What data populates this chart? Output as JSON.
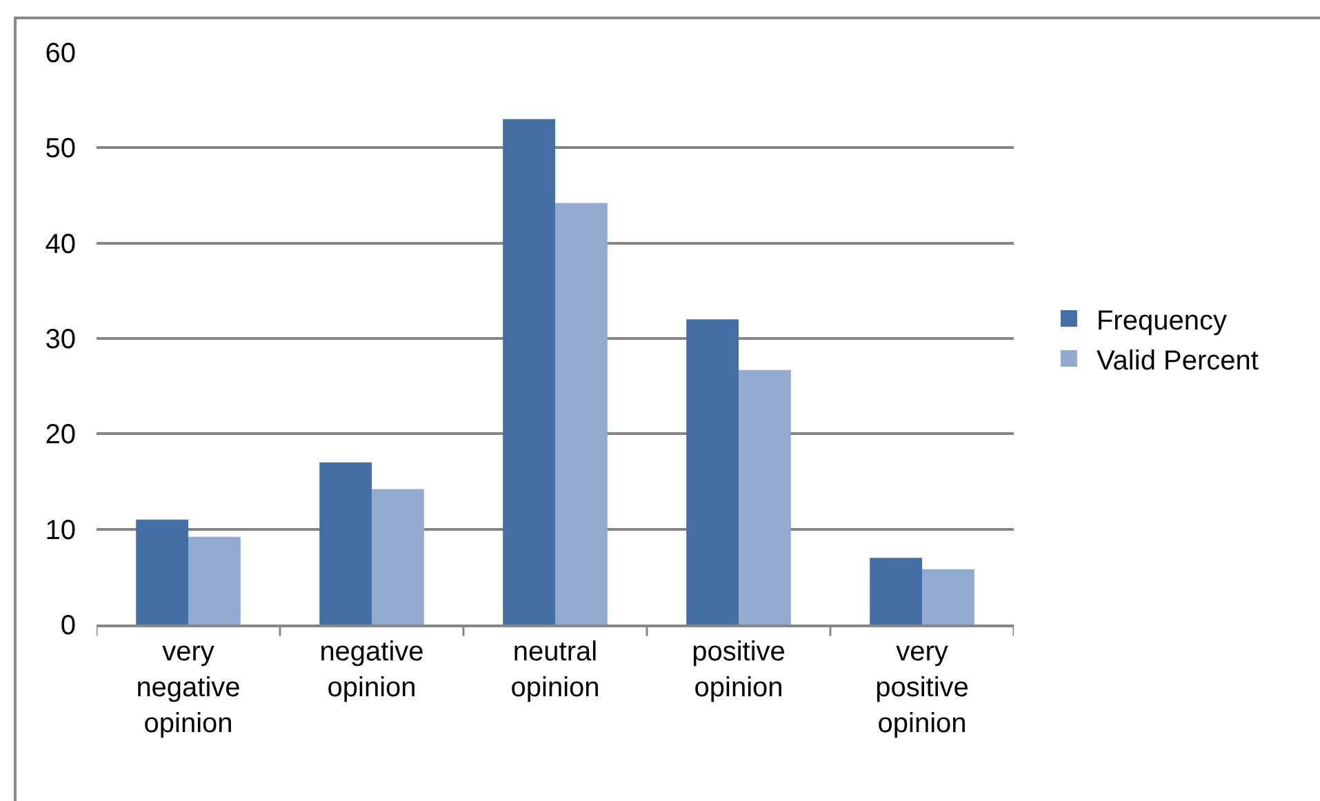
{
  "chart_data": {
    "type": "bar",
    "categories": [
      "very negative opinion",
      "negative opinion",
      "neutral opinion",
      "positive opinion",
      "very positive opinion"
    ],
    "series": [
      {
        "name": "Frequency",
        "color": "#4470a5",
        "values": [
          11,
          17,
          53,
          32,
          7
        ]
      },
      {
        "name": "Valid Percent",
        "color": "#92aad0",
        "values": [
          9.2,
          14.2,
          44.2,
          26.7,
          5.8
        ]
      }
    ],
    "ylim": [
      0,
      60
    ],
    "yticks": [
      0,
      10,
      20,
      30,
      40,
      50,
      60
    ],
    "grid": "y",
    "legend": "right"
  }
}
